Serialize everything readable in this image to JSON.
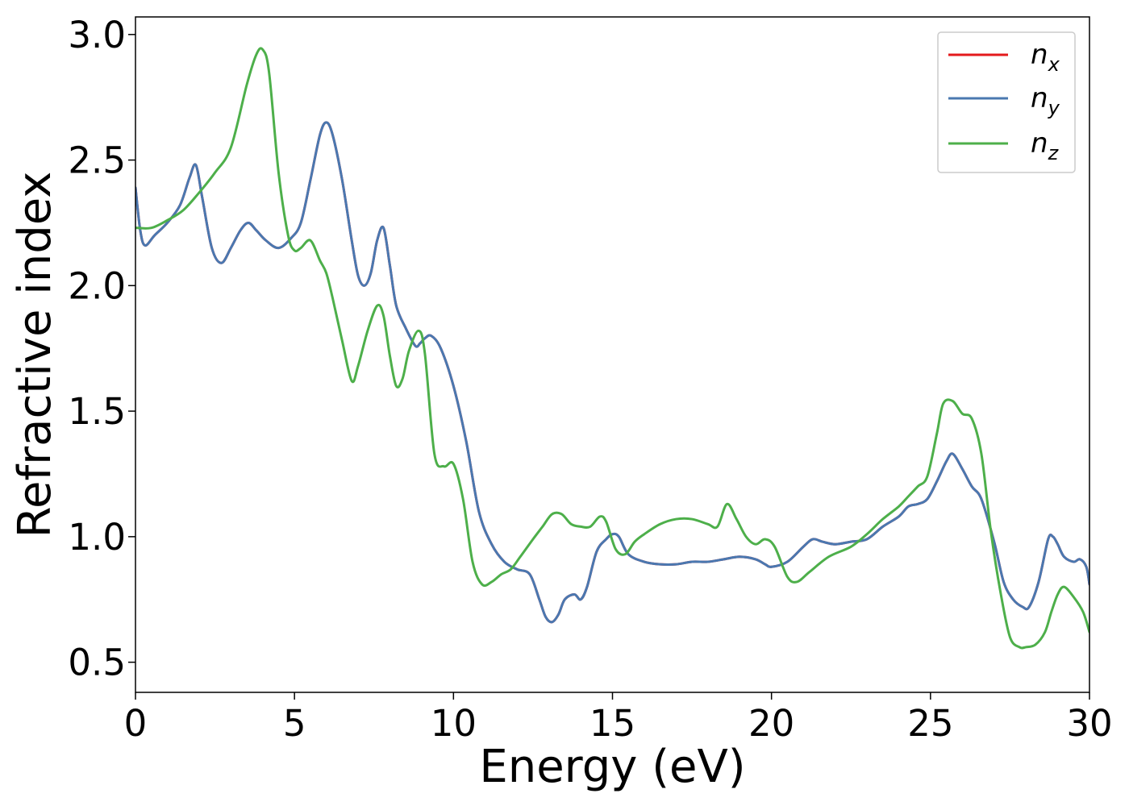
{
  "chart_data": {
    "type": "line",
    "xlabel": "Energy (eV)",
    "ylabel": "Refractive index",
    "xlim": [
      0,
      30
    ],
    "ylim": [
      0.38,
      3.07
    ],
    "xticks": [
      0,
      5,
      10,
      15,
      20,
      25,
      30
    ],
    "xtick_labels": [
      "0",
      "5",
      "10",
      "15",
      "20",
      "25",
      "30"
    ],
    "yticks": [
      0.5,
      1.0,
      1.5,
      2.0,
      2.5,
      3.0
    ],
    "ytick_labels": [
      "0.5",
      "1.0",
      "1.5",
      "2.0",
      "2.5",
      "3.0"
    ],
    "grid": false,
    "legend_position": "top-right",
    "series": [
      {
        "name": "n",
        "subscript": "x",
        "color": "#e41a1c",
        "x": [
          0,
          0.15,
          0.3,
          0.6,
          1.0,
          1.4,
          1.7,
          1.9,
          2.1,
          2.4,
          2.7,
          3.0,
          3.3,
          3.55,
          3.8,
          4.1,
          4.5,
          4.9,
          5.2,
          5.5,
          5.8,
          6.0,
          6.2,
          6.5,
          6.8,
          7.0,
          7.2,
          7.4,
          7.6,
          7.8,
          8.0,
          8.2,
          8.5,
          8.8,
          8.95,
          9.1,
          9.3,
          9.6,
          10.0,
          10.4,
          10.8,
          11.2,
          11.6,
          12.0,
          12.4,
          12.7,
          12.9,
          13.1,
          13.3,
          13.5,
          13.8,
          14.0,
          14.2,
          14.5,
          14.8,
          15.0,
          15.2,
          15.5,
          16.0,
          16.5,
          17.0,
          17.5,
          18.0,
          18.5,
          19.0,
          19.5,
          19.8,
          20.0,
          20.5,
          21.0,
          21.3,
          21.6,
          22.0,
          22.5,
          23.0,
          23.5,
          24.0,
          24.3,
          24.6,
          24.9,
          25.2,
          25.5,
          25.7,
          26.0,
          26.3,
          26.6,
          27.0,
          27.3,
          27.6,
          27.9,
          28.1,
          28.4,
          28.7,
          28.85,
          29.0,
          29.2,
          29.5,
          29.7,
          29.9,
          30.0
        ],
        "values": [
          2.39,
          2.22,
          2.16,
          2.2,
          2.25,
          2.32,
          2.43,
          2.48,
          2.35,
          2.15,
          2.09,
          2.15,
          2.22,
          2.25,
          2.22,
          2.18,
          2.15,
          2.19,
          2.25,
          2.42,
          2.6,
          2.65,
          2.6,
          2.42,
          2.18,
          2.04,
          2.0,
          2.05,
          2.18,
          2.23,
          2.08,
          1.92,
          1.83,
          1.76,
          1.77,
          1.79,
          1.8,
          1.75,
          1.6,
          1.38,
          1.1,
          0.97,
          0.9,
          0.87,
          0.85,
          0.75,
          0.68,
          0.66,
          0.69,
          0.75,
          0.77,
          0.75,
          0.8,
          0.94,
          0.99,
          1.01,
          1.0,
          0.93,
          0.9,
          0.89,
          0.89,
          0.9,
          0.9,
          0.91,
          0.92,
          0.91,
          0.89,
          0.88,
          0.9,
          0.96,
          0.99,
          0.98,
          0.97,
          0.98,
          0.99,
          1.04,
          1.08,
          1.12,
          1.13,
          1.15,
          1.22,
          1.3,
          1.33,
          1.27,
          1.2,
          1.15,
          0.98,
          0.82,
          0.75,
          0.72,
          0.72,
          0.82,
          0.99,
          1.0,
          0.97,
          0.92,
          0.9,
          0.91,
          0.88,
          0.81
        ]
      },
      {
        "name": "n",
        "subscript": "y",
        "color": "#4a78b0",
        "x": [
          0,
          0.15,
          0.3,
          0.6,
          1.0,
          1.4,
          1.7,
          1.9,
          2.1,
          2.4,
          2.7,
          3.0,
          3.3,
          3.55,
          3.8,
          4.1,
          4.5,
          4.9,
          5.2,
          5.5,
          5.8,
          6.0,
          6.2,
          6.5,
          6.8,
          7.0,
          7.2,
          7.4,
          7.6,
          7.8,
          8.0,
          8.2,
          8.5,
          8.8,
          8.95,
          9.1,
          9.3,
          9.6,
          10.0,
          10.4,
          10.8,
          11.2,
          11.6,
          12.0,
          12.4,
          12.7,
          12.9,
          13.1,
          13.3,
          13.5,
          13.8,
          14.0,
          14.2,
          14.5,
          14.8,
          15.0,
          15.2,
          15.5,
          16.0,
          16.5,
          17.0,
          17.5,
          18.0,
          18.5,
          19.0,
          19.5,
          19.8,
          20.0,
          20.5,
          21.0,
          21.3,
          21.6,
          22.0,
          22.5,
          23.0,
          23.5,
          24.0,
          24.3,
          24.6,
          24.9,
          25.2,
          25.5,
          25.7,
          26.0,
          26.3,
          26.6,
          27.0,
          27.3,
          27.6,
          27.9,
          28.1,
          28.4,
          28.7,
          28.85,
          29.0,
          29.2,
          29.5,
          29.7,
          29.9,
          30.0
        ],
        "values": [
          2.39,
          2.22,
          2.16,
          2.2,
          2.25,
          2.32,
          2.43,
          2.48,
          2.35,
          2.15,
          2.09,
          2.15,
          2.22,
          2.25,
          2.22,
          2.18,
          2.15,
          2.19,
          2.25,
          2.42,
          2.6,
          2.65,
          2.6,
          2.42,
          2.18,
          2.04,
          2.0,
          2.05,
          2.18,
          2.23,
          2.08,
          1.92,
          1.83,
          1.76,
          1.77,
          1.79,
          1.8,
          1.75,
          1.6,
          1.38,
          1.1,
          0.97,
          0.9,
          0.87,
          0.85,
          0.75,
          0.68,
          0.66,
          0.69,
          0.75,
          0.77,
          0.75,
          0.8,
          0.94,
          0.99,
          1.01,
          1.0,
          0.93,
          0.9,
          0.89,
          0.89,
          0.9,
          0.9,
          0.91,
          0.92,
          0.91,
          0.89,
          0.88,
          0.9,
          0.96,
          0.99,
          0.98,
          0.97,
          0.98,
          0.99,
          1.04,
          1.08,
          1.12,
          1.13,
          1.15,
          1.22,
          1.3,
          1.33,
          1.27,
          1.2,
          1.15,
          0.98,
          0.82,
          0.75,
          0.72,
          0.72,
          0.82,
          0.99,
          1.0,
          0.97,
          0.92,
          0.9,
          0.91,
          0.88,
          0.81
        ]
      },
      {
        "name": "n",
        "subscript": "z",
        "color": "#4daf4a",
        "x": [
          0,
          0.5,
          1.0,
          1.5,
          2.0,
          2.5,
          3.0,
          3.5,
          3.8,
          4.0,
          4.2,
          4.5,
          4.8,
          5.0,
          5.2,
          5.5,
          5.8,
          6.0,
          6.2,
          6.5,
          6.8,
          7.0,
          7.3,
          7.6,
          7.8,
          8.0,
          8.2,
          8.4,
          8.6,
          8.9,
          9.1,
          9.4,
          9.7,
          10.0,
          10.3,
          10.6,
          10.9,
          11.2,
          11.5,
          11.8,
          12.1,
          12.5,
          12.8,
          13.1,
          13.4,
          13.7,
          14.0,
          14.3,
          14.6,
          14.8,
          15.1,
          15.4,
          15.7,
          16.0,
          16.5,
          17.0,
          17.5,
          18.0,
          18.3,
          18.6,
          18.9,
          19.2,
          19.5,
          19.8,
          20.1,
          20.5,
          20.8,
          21.2,
          21.8,
          22.5,
          23.0,
          23.5,
          24.0,
          24.3,
          24.6,
          24.9,
          25.2,
          25.4,
          25.7,
          26.0,
          26.3,
          26.6,
          26.9,
          27.2,
          27.5,
          27.8,
          28.0,
          28.3,
          28.6,
          28.8,
          29.0,
          29.2,
          29.5,
          29.8,
          30.0
        ],
        "values": [
          2.23,
          2.23,
          2.26,
          2.3,
          2.37,
          2.45,
          2.55,
          2.8,
          2.92,
          2.94,
          2.85,
          2.45,
          2.2,
          2.14,
          2.15,
          2.18,
          2.1,
          2.05,
          1.95,
          1.78,
          1.62,
          1.68,
          1.82,
          1.92,
          1.88,
          1.72,
          1.6,
          1.63,
          1.74,
          1.82,
          1.73,
          1.33,
          1.28,
          1.29,
          1.15,
          0.9,
          0.81,
          0.82,
          0.85,
          0.87,
          0.92,
          0.99,
          1.04,
          1.09,
          1.09,
          1.05,
          1.04,
          1.04,
          1.08,
          1.06,
          0.95,
          0.93,
          0.98,
          1.01,
          1.05,
          1.07,
          1.07,
          1.05,
          1.04,
          1.13,
          1.07,
          1.0,
          0.97,
          0.99,
          0.96,
          0.84,
          0.82,
          0.86,
          0.92,
          0.96,
          1.01,
          1.07,
          1.12,
          1.16,
          1.2,
          1.24,
          1.41,
          1.53,
          1.54,
          1.49,
          1.47,
          1.33,
          1.02,
          0.78,
          0.6,
          0.56,
          0.56,
          0.57,
          0.62,
          0.7,
          0.77,
          0.8,
          0.76,
          0.7,
          0.62
        ]
      }
    ]
  }
}
